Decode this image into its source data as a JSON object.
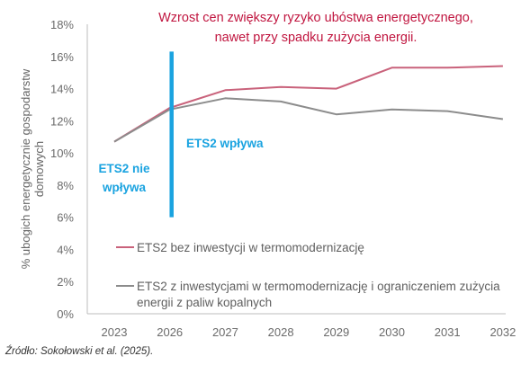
{
  "chart_data": {
    "type": "line",
    "title": "Wzrost cen zwiększy ryzyko ubóstwa energetycznego,\nnawet przy spadku zużycia energii.",
    "ylabel": "% ubogich energetycznie gospodarstw domowych",
    "xlabel": "",
    "x": [
      "2023",
      "2026",
      "2027",
      "2028",
      "2029",
      "2030",
      "2031",
      "2032"
    ],
    "ylim": [
      0,
      18
    ],
    "yticks": [
      "0%",
      "2%",
      "4%",
      "6%",
      "8%",
      "10%",
      "12%",
      "14%",
      "16%",
      "18%"
    ],
    "y_unit": "%",
    "grid": false,
    "legend_placement": "bottom-right",
    "series": [
      {
        "name": "ETS2 bez inwestycji w termomodernizację",
        "color": "#c9627b",
        "values": [
          10.7,
          12.8,
          13.9,
          14.1,
          14.0,
          15.3,
          15.3,
          15.4
        ]
      },
      {
        "name": "ETS2 z inwestycjami w termomodernizację i ograniczeniem zużycia energii z paliw kopalnych",
        "color": "#8c8c8c",
        "values": [
          10.7,
          12.7,
          13.4,
          13.2,
          12.4,
          12.7,
          12.6,
          12.1
        ]
      }
    ],
    "marker": {
      "x": "2026",
      "y_range": [
        6.0,
        16.3
      ],
      "color": "#1aa3e0"
    },
    "annotations": [
      {
        "text": "ETS2 nie\nwpływa",
        "color": "#1aa3e0"
      },
      {
        "text": "ETS2 wpływa",
        "color": "#1aa3e0"
      }
    ],
    "title_color": "#c0153f"
  },
  "source": "Źródło: Sokołowski et al. (2025)."
}
